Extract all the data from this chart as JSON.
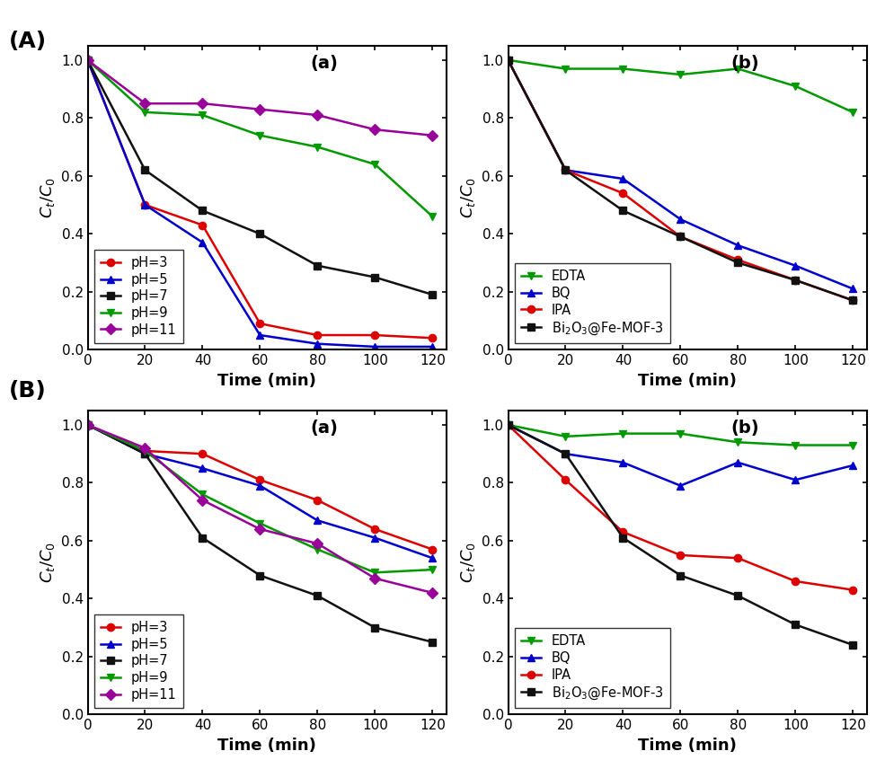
{
  "time": [
    0,
    20,
    40,
    60,
    80,
    100,
    120
  ],
  "A_a": {
    "pH3": [
      1.0,
      0.5,
      0.43,
      0.09,
      0.05,
      0.05,
      0.04
    ],
    "pH5": [
      1.0,
      0.5,
      0.37,
      0.05,
      0.02,
      0.01,
      0.01
    ],
    "pH7": [
      1.0,
      0.62,
      0.48,
      0.4,
      0.29,
      0.25,
      0.19
    ],
    "pH9": [
      1.0,
      0.82,
      0.81,
      0.74,
      0.7,
      0.64,
      0.46
    ],
    "pH11": [
      1.0,
      0.85,
      0.85,
      0.83,
      0.81,
      0.76,
      0.74
    ]
  },
  "A_b": {
    "EDTA": [
      1.0,
      0.97,
      0.97,
      0.95,
      0.97,
      0.91,
      0.82
    ],
    "BQ": [
      1.0,
      0.62,
      0.59,
      0.45,
      0.36,
      0.29,
      0.21
    ],
    "IPA": [
      1.0,
      0.62,
      0.54,
      0.39,
      0.31,
      0.24,
      0.17
    ],
    "Bi2O3": [
      1.0,
      0.62,
      0.48,
      0.39,
      0.3,
      0.24,
      0.17
    ]
  },
  "B_a": {
    "pH3": [
      1.0,
      0.91,
      0.9,
      0.81,
      0.74,
      0.64,
      0.57
    ],
    "pH5": [
      1.0,
      0.9,
      0.85,
      0.79,
      0.67,
      0.61,
      0.54
    ],
    "pH7": [
      1.0,
      0.9,
      0.61,
      0.48,
      0.41,
      0.3,
      0.25
    ],
    "pH9": [
      1.0,
      0.91,
      0.76,
      0.66,
      0.57,
      0.49,
      0.5
    ],
    "pH11": [
      1.0,
      0.92,
      0.74,
      0.64,
      0.59,
      0.47,
      0.42
    ]
  },
  "B_b": {
    "EDTA": [
      1.0,
      0.96,
      0.97,
      0.97,
      0.94,
      0.93,
      0.93
    ],
    "BQ": [
      1.0,
      0.9,
      0.87,
      0.79,
      0.87,
      0.81,
      0.86
    ],
    "IPA": [
      1.0,
      0.81,
      0.63,
      0.55,
      0.54,
      0.46,
      0.43
    ],
    "Bi2O3": [
      1.0,
      0.9,
      0.61,
      0.48,
      0.41,
      0.31,
      0.24
    ]
  },
  "colors_pH": {
    "pH3": "#dd0000",
    "pH5": "#0000cc",
    "pH7": "#111111",
    "pH9": "#009900",
    "pH11": "#990099"
  },
  "colors_scav": {
    "EDTA": "#009900",
    "BQ": "#0000cc",
    "IPA": "#dd0000",
    "Bi2O3": "#111111"
  },
  "markers_pH": {
    "pH3": "o",
    "pH5": "^",
    "pH7": "s",
    "pH9": "v",
    "pH11": "D"
  },
  "markers_scav": {
    "EDTA": "v",
    "BQ": "^",
    "IPA": "o",
    "Bi2O3": "s"
  }
}
